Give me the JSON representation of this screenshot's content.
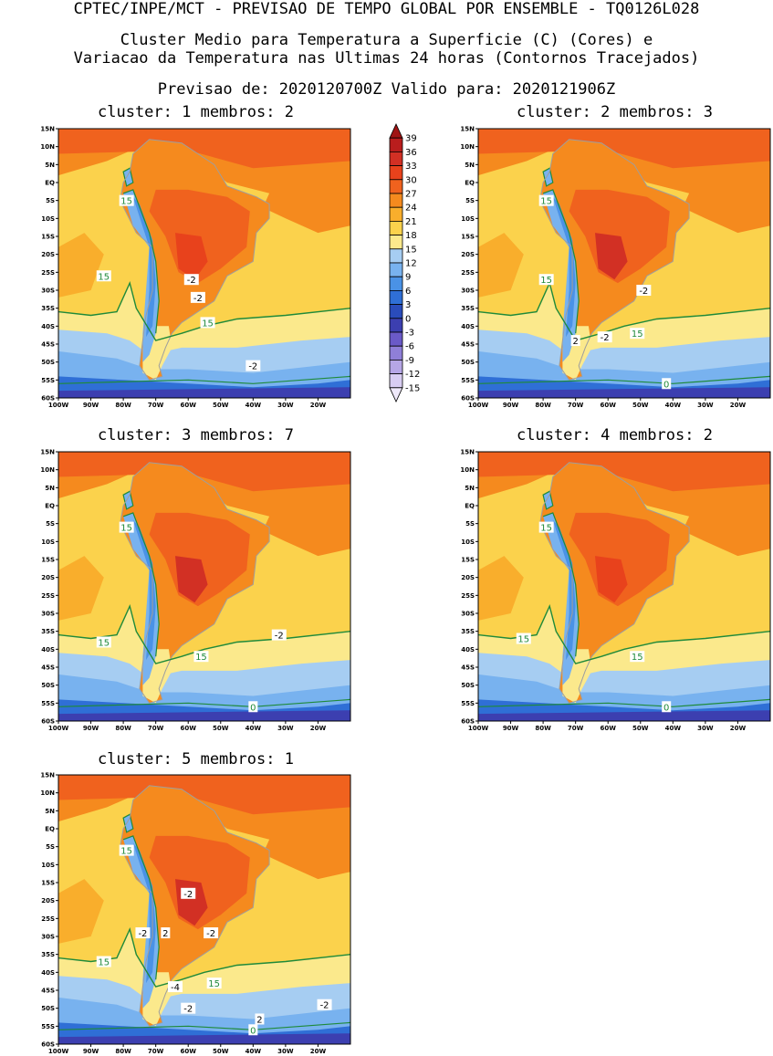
{
  "header": {
    "title": "CPTEC/INPE/MCT - PREVISAO DE TEMPO GLOBAL POR ENSEMBLE - TQ0126L028",
    "subtitle_line1": "Cluster Medio para Temperatura a Superficie (C) (Cores) e",
    "subtitle_line2": "Variacao da Temperatura nas Ultimas 24 horas (Contornos Tracejados)",
    "forecast_line": "Previsao de: 2020120700Z   Valido para: 2020121906Z"
  },
  "axes": {
    "lat_labels": [
      "15N",
      "10N",
      "5N",
      "EQ",
      "5S",
      "10S",
      "15S",
      "20S",
      "25S",
      "30S",
      "35S",
      "40S",
      "45S",
      "50S",
      "55S",
      "60S"
    ],
    "lon_labels": [
      "100W",
      "90W",
      "80W",
      "70W",
      "60W",
      "50W",
      "40W",
      "30W",
      "20W"
    ],
    "lat_range": [
      -60,
      15
    ],
    "lon_range": [
      -100,
      -10
    ]
  },
  "colorbar": {
    "levels": [
      "39",
      "36",
      "33",
      "30",
      "27",
      "24",
      "21",
      "18",
      "15",
      "12",
      "9",
      "6",
      "3",
      "0",
      "-3",
      "-6",
      "-9",
      "-12",
      "-15"
    ],
    "colors": [
      "#a01414",
      "#b91d1d",
      "#d23024",
      "#e8421c",
      "#f0621e",
      "#f58a1e",
      "#f9ae2c",
      "#fbd24c",
      "#fbe98c",
      "#a6cdf2",
      "#78b2ef",
      "#4a92e6",
      "#2f6fd6",
      "#2a4cbb",
      "#3c3fb0",
      "#6a5ac8",
      "#8f7fd8",
      "#b6a6e6",
      "#d8cdf2",
      "#efe9fa"
    ]
  },
  "panels": [
    {
      "title": "cluster: 1   membros: 2",
      "labels": [
        {
          "text": "15",
          "kind": "iso15",
          "lon": -79,
          "lat": -5
        },
        {
          "text": "15",
          "kind": "iso15",
          "lon": -86,
          "lat": -26
        },
        {
          "text": "15",
          "kind": "iso15",
          "lon": -54,
          "lat": -39
        },
        {
          "text": "-2",
          "kind": "delta",
          "lon": -59,
          "lat": -27
        },
        {
          "text": "-2",
          "kind": "delta",
          "lon": -57,
          "lat": -32
        },
        {
          "text": "-2",
          "kind": "delta",
          "lon": -40,
          "lat": -51
        }
      ]
    },
    {
      "title": "cluster: 2   membros: 3",
      "labels": [
        {
          "text": "15",
          "kind": "iso15",
          "lon": -79,
          "lat": -5
        },
        {
          "text": "15",
          "kind": "iso15",
          "lon": -79,
          "lat": -27
        },
        {
          "text": "15",
          "kind": "iso15",
          "lon": -51,
          "lat": -42
        },
        {
          "text": "-2",
          "kind": "delta",
          "lon": -49,
          "lat": -30
        },
        {
          "text": "-2",
          "kind": "delta",
          "lon": -61,
          "lat": -43
        },
        {
          "text": "2",
          "kind": "delta",
          "lon": -70,
          "lat": -44
        },
        {
          "text": "0",
          "kind": "iso15",
          "lon": -42,
          "lat": -56
        }
      ]
    },
    {
      "title": "cluster: 3   membros: 7",
      "labels": [
        {
          "text": "15",
          "kind": "iso15",
          "lon": -79,
          "lat": -6
        },
        {
          "text": "15",
          "kind": "iso15",
          "lon": -86,
          "lat": -38
        },
        {
          "text": "15",
          "kind": "iso15",
          "lon": -56,
          "lat": -42
        },
        {
          "text": "-2",
          "kind": "delta",
          "lon": -32,
          "lat": -36
        },
        {
          "text": "0",
          "kind": "iso15",
          "lon": -40,
          "lat": -56
        }
      ]
    },
    {
      "title": "cluster: 4   membros: 2",
      "labels": [
        {
          "text": "15",
          "kind": "iso15",
          "lon": -79,
          "lat": -6
        },
        {
          "text": "15",
          "kind": "iso15",
          "lon": -86,
          "lat": -37
        },
        {
          "text": "15",
          "kind": "iso15",
          "lon": -51,
          "lat": -42
        },
        {
          "text": "0",
          "kind": "iso15",
          "lon": -42,
          "lat": -56
        }
      ]
    },
    {
      "title": "cluster: 5   membros: 1",
      "labels": [
        {
          "text": "15",
          "kind": "iso15",
          "lon": -79,
          "lat": -6
        },
        {
          "text": "15",
          "kind": "iso15",
          "lon": -86,
          "lat": -37
        },
        {
          "text": "15",
          "kind": "iso15",
          "lon": -52,
          "lat": -43
        },
        {
          "text": "-2",
          "kind": "delta",
          "lon": -60,
          "lat": -18
        },
        {
          "text": "-2",
          "kind": "delta",
          "lon": -74,
          "lat": -29
        },
        {
          "text": "2",
          "kind": "delta",
          "lon": -67,
          "lat": -29
        },
        {
          "text": "-2",
          "kind": "delta",
          "lon": -53,
          "lat": -29
        },
        {
          "text": "-4",
          "kind": "delta",
          "lon": -64,
          "lat": -44
        },
        {
          "text": "-2",
          "kind": "delta",
          "lon": -60,
          "lat": -50
        },
        {
          "text": "2",
          "kind": "delta",
          "lon": -38,
          "lat": -53
        },
        {
          "text": "-2",
          "kind": "delta",
          "lon": -18,
          "lat": -49
        },
        {
          "text": "0",
          "kind": "iso15",
          "lon": -40,
          "lat": -56
        }
      ]
    }
  ]
}
